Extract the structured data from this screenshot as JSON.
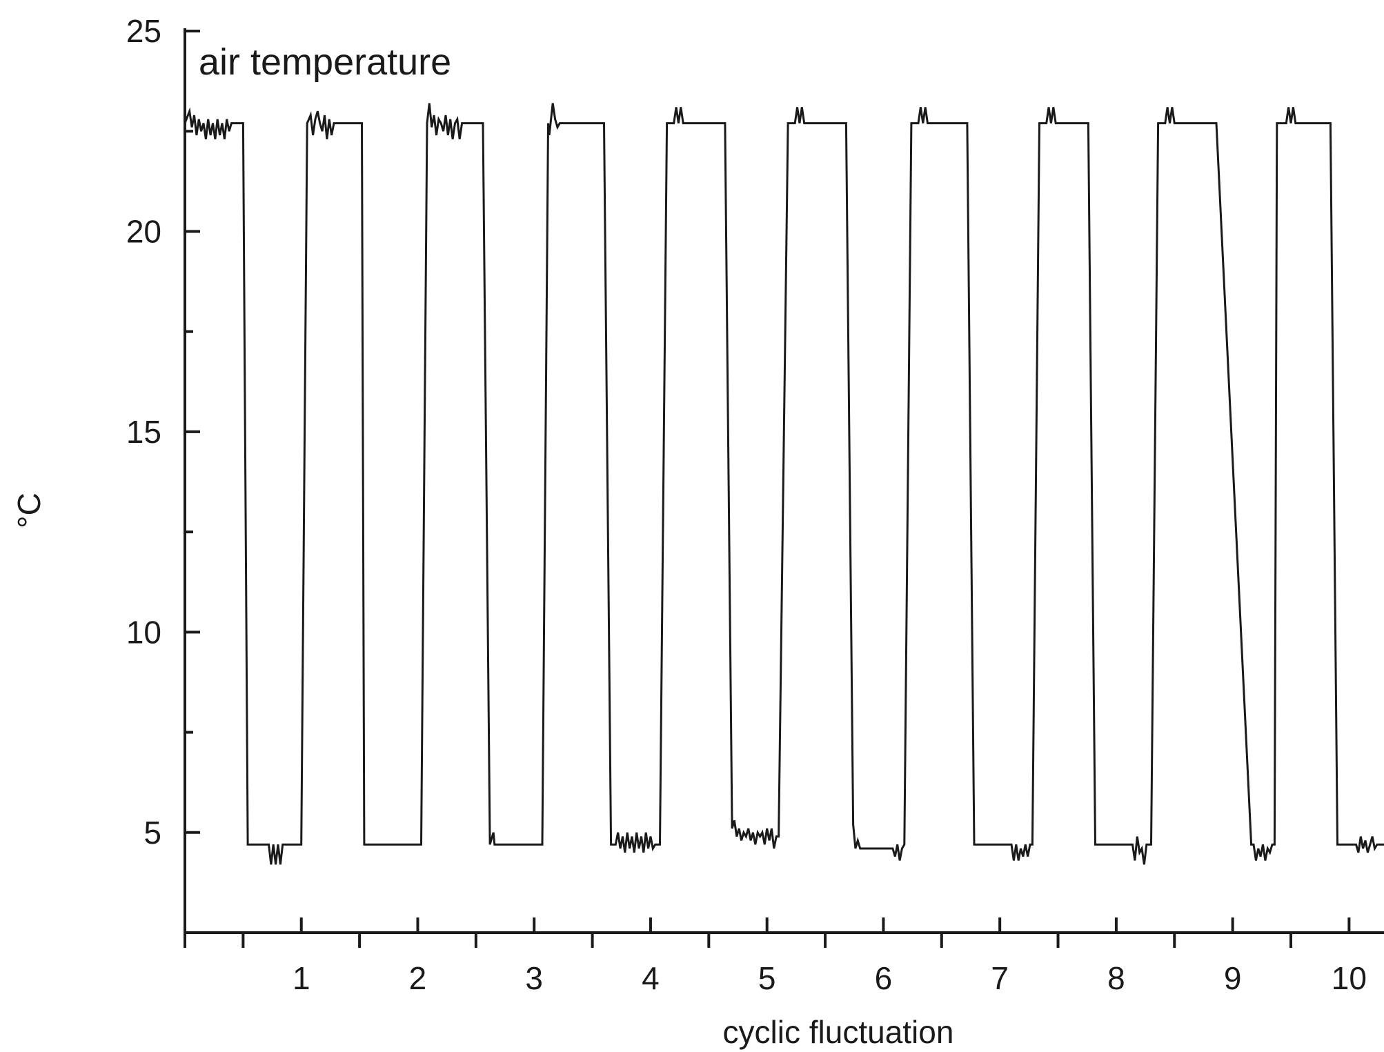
{
  "chart_data": {
    "type": "line",
    "title": "",
    "annotation": "air temperature",
    "xlabel": "cyclic fluctuation",
    "ylabel": "°C",
    "xlim": [
      0,
      10.3
    ],
    "ylim": [
      2.5,
      25
    ],
    "x_ticks": [
      1,
      2,
      3,
      4,
      5,
      6,
      7,
      8,
      9,
      10
    ],
    "x_tick_labels": [
      "1",
      "2",
      "3",
      "4",
      "5",
      "6",
      "7",
      "8",
      "9",
      "10"
    ],
    "y_ticks": [
      5,
      10,
      15,
      20,
      25
    ],
    "y_tick_labels": [
      "5",
      "10",
      "15",
      "20",
      "25"
    ],
    "grid": false,
    "legend": "none",
    "series": [
      {
        "x": [
          0,
          0.04,
          0.06,
          0.08,
          0.1,
          0.12,
          0.14,
          0.16,
          0.18,
          0.2,
          0.22,
          0.24,
          0.26,
          0.28,
          0.3,
          0.32,
          0.34,
          0.36,
          0.38,
          0.4,
          0.42,
          0.44,
          0.46,
          0.48,
          0.5,
          0.54,
          0.56,
          0.72,
          0.74,
          0.76,
          0.78,
          0.8,
          0.82,
          0.84,
          0.86,
          0.88,
          1.0,
          1.05,
          1.08,
          1.1,
          1.12,
          1.14,
          1.16,
          1.18,
          1.2,
          1.22,
          1.24,
          1.26,
          1.28,
          1.3,
          1.32,
          1.52,
          1.54,
          1.58,
          1.6,
          2.03,
          2.08,
          2.1,
          2.12,
          2.14,
          2.16,
          2.18,
          2.2,
          2.22,
          2.24,
          2.26,
          2.28,
          2.3,
          2.32,
          2.34,
          2.36,
          2.38,
          2.4,
          2.56,
          2.62,
          2.65,
          2.66,
          2.68,
          3.07,
          3.12,
          3.13,
          3.16,
          3.18,
          3.2,
          3.22,
          3.24,
          3.6,
          3.66,
          3.7,
          3.72,
          3.74,
          3.76,
          3.78,
          3.8,
          3.82,
          3.84,
          3.86,
          3.88,
          3.9,
          3.92,
          3.94,
          3.96,
          3.98,
          4.0,
          4.02,
          4.04,
          4.06,
          4.08,
          4.14,
          4.2,
          4.22,
          4.24,
          4.26,
          4.28,
          4.3,
          4.32,
          4.64,
          4.7,
          4.72,
          4.74,
          4.76,
          4.78,
          4.8,
          4.82,
          4.84,
          4.86,
          4.88,
          4.9,
          4.92,
          4.94,
          4.96,
          4.98,
          5.0,
          5.02,
          5.04,
          5.06,
          5.08,
          5.1,
          5.18,
          5.24,
          5.26,
          5.28,
          5.3,
          5.32,
          5.34,
          5.68,
          5.74,
          5.76,
          5.78,
          5.8,
          5.82,
          5.86,
          6.08,
          6.1,
          6.12,
          6.14,
          6.16,
          6.18,
          6.24,
          6.3,
          6.32,
          6.34,
          6.36,
          6.38,
          6.4,
          6.72,
          6.78,
          7.1,
          7.12,
          7.14,
          7.16,
          7.18,
          7.2,
          7.22,
          7.24,
          7.26,
          7.28,
          7.34,
          7.4,
          7.42,
          7.44,
          7.46,
          7.48,
          7.5,
          7.76,
          7.82,
          8.14,
          8.16,
          8.18,
          8.2,
          8.22,
          8.24,
          8.26,
          8.28,
          8.3,
          8.36,
          8.42,
          8.44,
          8.46,
          8.48,
          8.5,
          8.52,
          8.8,
          8.86,
          9.16,
          9.18,
          9.2,
          9.22,
          9.24,
          9.26,
          9.28,
          9.3,
          9.32,
          9.34,
          9.36,
          9.38,
          9.4,
          9.46,
          9.48,
          9.5,
          9.52,
          9.54,
          9.56,
          9.84,
          9.9,
          10.02,
          10.04,
          10.06,
          10.08,
          10.1,
          10.12,
          10.14,
          10.16,
          10.18,
          10.2,
          10.22,
          10.24,
          10.26,
          10.28,
          10.3
        ],
        "y": [
          22.7,
          23.0,
          22.6,
          22.9,
          22.4,
          22.8,
          22.5,
          22.7,
          22.3,
          22.8,
          22.4,
          22.7,
          22.3,
          22.8,
          22.4,
          22.7,
          22.3,
          22.8,
          22.5,
          22.7,
          22.7,
          22.7,
          22.7,
          22.7,
          22.7,
          4.7,
          4.7,
          4.7,
          4.2,
          4.7,
          4.2,
          4.7,
          4.2,
          4.7,
          4.7,
          4.7,
          4.7,
          22.7,
          22.9,
          22.4,
          22.8,
          23.0,
          22.7,
          22.5,
          22.9,
          22.3,
          22.8,
          22.4,
          22.7,
          22.7,
          22.7,
          22.7,
          4.7,
          4.7,
          4.7,
          4.7,
          22.7,
          23.2,
          22.6,
          22.9,
          22.4,
          22.8,
          22.7,
          22.5,
          22.9,
          22.4,
          22.8,
          22.3,
          22.7,
          22.8,
          22.3,
          22.7,
          22.7,
          22.7,
          4.7,
          5.0,
          4.7,
          4.7,
          4.7,
          22.7,
          22.4,
          23.2,
          22.8,
          22.6,
          22.7,
          22.7,
          22.7,
          4.7,
          4.7,
          5.0,
          4.6,
          4.9,
          4.5,
          5.0,
          4.6,
          4.9,
          4.5,
          5.0,
          4.6,
          4.9,
          4.5,
          5.0,
          4.6,
          4.9,
          4.6,
          4.7,
          4.7,
          4.7,
          22.7,
          22.7,
          23.1,
          22.7,
          23.1,
          22.7,
          22.7,
          22.7,
          22.7,
          5.1,
          5.3,
          4.9,
          5.1,
          4.8,
          5.0,
          4.9,
          5.1,
          4.8,
          5.0,
          4.7,
          5.0,
          4.9,
          5.0,
          4.7,
          5.1,
          4.8,
          5.1,
          4.6,
          4.9,
          4.9,
          22.7,
          22.7,
          23.1,
          22.7,
          23.1,
          22.7,
          22.7,
          22.7,
          5.2,
          4.6,
          4.8,
          4.6,
          4.6,
          4.6,
          4.6,
          4.4,
          4.7,
          4.3,
          4.6,
          4.7,
          22.7,
          22.7,
          23.1,
          22.7,
          23.1,
          22.7,
          22.7,
          22.7,
          4.7,
          4.7,
          4.3,
          4.7,
          4.3,
          4.6,
          4.4,
          4.7,
          4.4,
          4.7,
          4.7,
          22.7,
          22.7,
          23.1,
          22.7,
          23.1,
          22.7,
          22.7,
          22.7,
          4.7,
          4.7,
          4.3,
          4.9,
          4.5,
          4.6,
          4.2,
          4.7,
          4.7,
          4.7,
          22.7,
          22.7,
          23.1,
          22.7,
          23.1,
          22.7,
          22.7,
          22.7,
          22.7,
          4.7,
          4.7,
          4.3,
          4.6,
          4.4,
          4.7,
          4.3,
          4.6,
          4.5,
          4.7,
          4.7,
          22.7,
          22.7,
          22.7,
          23.1,
          22.7,
          23.1,
          22.7,
          22.7,
          22.7,
          4.7,
          4.7,
          4.7,
          4.7,
          4.5,
          4.9,
          4.6,
          4.8,
          4.5,
          4.7,
          4.9,
          4.6,
          4.7,
          4.7,
          4.7,
          4.7
        ]
      }
    ]
  }
}
